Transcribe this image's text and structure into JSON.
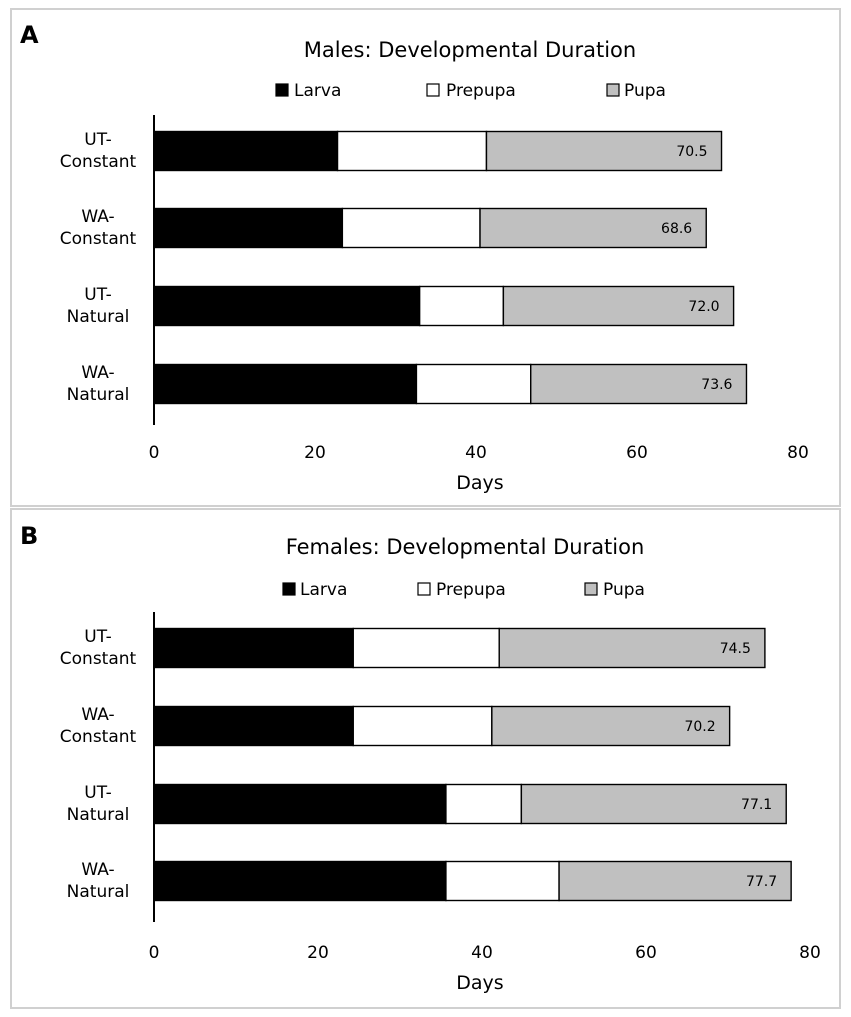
{
  "panel_labels": [
    "A",
    "B"
  ],
  "chart_data": [
    {
      "type": "bar",
      "orientation": "horizontal",
      "stacked": true,
      "title": "Males: Developmental Duration",
      "xlabel": "Days",
      "ylabel": "",
      "xlim": [
        0,
        80
      ],
      "xticks": [
        0,
        20,
        40,
        60,
        80
      ],
      "categories": [
        [
          "UT-",
          "Constant"
        ],
        [
          "WA-",
          "Constant"
        ],
        [
          "UT-",
          "Natural"
        ],
        [
          "WA-",
          "Natural"
        ]
      ],
      "series": [
        {
          "name": "Larva",
          "color": "#000000",
          "values": [
            22.8,
            23.4,
            33.0,
            32.6
          ]
        },
        {
          "name": "Prepupa",
          "color": "#ffffff",
          "values": [
            18.5,
            17.1,
            10.4,
            14.2
          ]
        },
        {
          "name": "Pupa",
          "color": "#c0c0c0",
          "values": [
            29.2,
            28.1,
            28.6,
            26.8
          ]
        }
      ],
      "totals": [
        "70.5",
        "68.6",
        "72.0",
        "73.6"
      ],
      "legend": "top"
    },
    {
      "type": "bar",
      "orientation": "horizontal",
      "stacked": true,
      "title": "Females: Developmental Duration",
      "xlabel": "Days",
      "ylabel": "",
      "xlim": [
        0,
        80
      ],
      "xticks": [
        0,
        20,
        40,
        60,
        80
      ],
      "categories": [
        [
          "UT-",
          "Constant"
        ],
        [
          "WA-",
          "Constant"
        ],
        [
          "UT-",
          "Natural"
        ],
        [
          "WA-",
          "Natural"
        ]
      ],
      "series": [
        {
          "name": "Larva",
          "color": "#000000",
          "values": [
            24.3,
            24.3,
            35.6,
            35.6
          ]
        },
        {
          "name": "Prepupa",
          "color": "#ffffff",
          "values": [
            17.8,
            16.9,
            9.2,
            13.8
          ]
        },
        {
          "name": "Pupa",
          "color": "#c0c0c0",
          "values": [
            32.4,
            29.0,
            32.3,
            28.3
          ]
        }
      ],
      "totals": [
        "74.5",
        "70.2",
        "77.1",
        "77.7"
      ],
      "legend": "top"
    }
  ]
}
